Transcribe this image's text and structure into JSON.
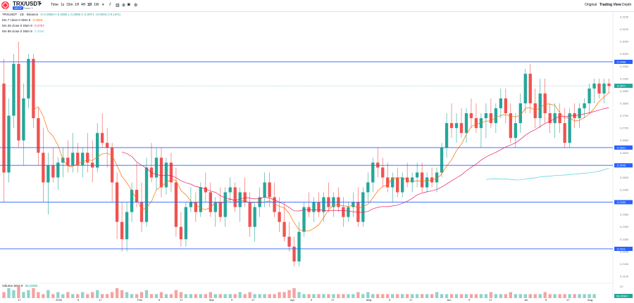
{
  "header": {
    "symbol": "TRX/USDT",
    "market_badge": "SPOT",
    "phase": "Phase 1",
    "timeframes": [
      {
        "label": "Time",
        "active": false
      },
      {
        "label": "1s",
        "active": false
      },
      {
        "label": "15m",
        "active": false
      },
      {
        "label": "1H",
        "active": false
      },
      {
        "label": "4H",
        "active": false
      },
      {
        "label": "1D",
        "active": true
      },
      {
        "label": "1W",
        "active": false
      }
    ],
    "more_caret": "▾",
    "view_tabs": [
      {
        "label": "Original",
        "active": false
      },
      {
        "label": "Trading View",
        "active": true
      },
      {
        "label": "Depth",
        "active": false
      }
    ]
  },
  "legend": {
    "ohlc_title": "TRXUSDT · 1D · Binance",
    "ohlc_values": "O 0.2866 H 0.2883 L 0.2859 C 0.2871 +0.0004 (+0.14%)",
    "ma7": {
      "label": "MA 7 close 0 SMA 9",
      "value": "0.2858",
      "color": "#ff6d00"
    },
    "ma25": {
      "label": "MA 25 close 0 SMA 9",
      "value": "0.2767",
      "color": "#e91e63"
    },
    "ma99": {
      "label": "MA 99 close 0 SMA 9",
      "value": "0.2656",
      "color": "#4dd0e1"
    },
    "volume": {
      "label": "Volume SMA 9",
      "value": "96.009M"
    }
  },
  "price_axis": {
    "ticks": [
      "0.3150",
      "0.3100",
      "0.3050",
      "0.3000",
      "0.2950",
      "0.2900",
      "0.2850",
      "0.2800",
      "0.2750",
      "0.2700",
      "0.2650",
      "0.2600",
      "0.2550",
      "0.2500",
      "0.2450",
      "0.2400",
      "0.2350",
      "0.2300",
      "0.2250",
      "0.2200",
      "0.2150",
      "0.2100"
    ],
    "hlines": [
      {
        "value": "0.2968",
        "color": "#2962ff"
      },
      {
        "value": "0.2621",
        "color": "#2962ff"
      },
      {
        "value": "0.2549",
        "color": "#2962ff"
      },
      {
        "value": "0.2400",
        "color": "#2962ff"
      },
      {
        "value": "0.2211",
        "color": "#2962ff"
      }
    ],
    "last_price": "0.2871",
    "vol_label": "96.009M",
    "vol_tick": "20"
  },
  "x_axis": [
    "17",
    "2025",
    "9",
    "17",
    "Feb",
    "9",
    "17",
    "Mar",
    "9",
    "17",
    "Apr",
    "9",
    "17",
    "May",
    "9",
    "17",
    "Jun",
    "9",
    "17",
    "Jul",
    "9",
    "17",
    "Aug"
  ],
  "chart_data": {
    "type": "candlestick",
    "title": "TRXUSDT · 1D · Binance",
    "ylim": [
      0.208,
      0.317
    ],
    "up_color": "#26a69a",
    "down_color": "#ef5350",
    "candles": [
      [
        0.288,
        0.298,
        0.24,
        0.252
      ],
      [
        0.252,
        0.282,
        0.248,
        0.275
      ],
      [
        0.275,
        0.3,
        0.27,
        0.296
      ],
      [
        0.296,
        0.305,
        0.262,
        0.265
      ],
      [
        0.265,
        0.288,
        0.255,
        0.282
      ],
      [
        0.282,
        0.3,
        0.278,
        0.298
      ],
      [
        0.298,
        0.3,
        0.27,
        0.274
      ],
      [
        0.274,
        0.278,
        0.255,
        0.26
      ],
      [
        0.26,
        0.27,
        0.24,
        0.248
      ],
      [
        0.248,
        0.26,
        0.235,
        0.255
      ],
      [
        0.255,
        0.262,
        0.248,
        0.25
      ],
      [
        0.25,
        0.258,
        0.245,
        0.256
      ],
      [
        0.256,
        0.262,
        0.25,
        0.258
      ],
      [
        0.258,
        0.265,
        0.252,
        0.255
      ],
      [
        0.255,
        0.268,
        0.252,
        0.26
      ],
      [
        0.26,
        0.264,
        0.252,
        0.255
      ],
      [
        0.255,
        0.262,
        0.25,
        0.26
      ],
      [
        0.26,
        0.268,
        0.252,
        0.256
      ],
      [
        0.256,
        0.265,
        0.248,
        0.254
      ],
      [
        0.254,
        0.272,
        0.252,
        0.268
      ],
      [
        0.268,
        0.276,
        0.262,
        0.264
      ],
      [
        0.264,
        0.27,
        0.254,
        0.262
      ],
      [
        0.262,
        0.264,
        0.24,
        0.248
      ],
      [
        0.248,
        0.252,
        0.225,
        0.232
      ],
      [
        0.232,
        0.24,
        0.22,
        0.225
      ],
      [
        0.225,
        0.24,
        0.22,
        0.236
      ],
      [
        0.236,
        0.248,
        0.232,
        0.245
      ],
      [
        0.245,
        0.256,
        0.238,
        0.24
      ],
      [
        0.24,
        0.248,
        0.228,
        0.232
      ],
      [
        0.232,
        0.258,
        0.23,
        0.254
      ],
      [
        0.254,
        0.264,
        0.248,
        0.25
      ],
      [
        0.25,
        0.262,
        0.245,
        0.258
      ],
      [
        0.258,
        0.262,
        0.242,
        0.246
      ],
      [
        0.246,
        0.258,
        0.243,
        0.256
      ],
      [
        0.256,
        0.26,
        0.244,
        0.248
      ],
      [
        0.248,
        0.254,
        0.226,
        0.23
      ],
      [
        0.23,
        0.236,
        0.222,
        0.225
      ],
      [
        0.225,
        0.24,
        0.222,
        0.238
      ],
      [
        0.238,
        0.246,
        0.236,
        0.24
      ],
      [
        0.24,
        0.244,
        0.232,
        0.236
      ],
      [
        0.236,
        0.248,
        0.234,
        0.246
      ],
      [
        0.246,
        0.252,
        0.24,
        0.244
      ],
      [
        0.244,
        0.248,
        0.234,
        0.236
      ],
      [
        0.236,
        0.242,
        0.23,
        0.24
      ],
      [
        0.24,
        0.246,
        0.232,
        0.234
      ],
      [
        0.234,
        0.246,
        0.23,
        0.244
      ],
      [
        0.244,
        0.25,
        0.24,
        0.246
      ],
      [
        0.246,
        0.248,
        0.236,
        0.238
      ],
      [
        0.238,
        0.246,
        0.232,
        0.244
      ],
      [
        0.244,
        0.25,
        0.238,
        0.24
      ],
      [
        0.24,
        0.244,
        0.226,
        0.23
      ],
      [
        0.23,
        0.24,
        0.224,
        0.238
      ],
      [
        0.238,
        0.246,
        0.234,
        0.242
      ],
      [
        0.242,
        0.252,
        0.238,
        0.248
      ],
      [
        0.248,
        0.252,
        0.238,
        0.242
      ],
      [
        0.242,
        0.248,
        0.234,
        0.236
      ],
      [
        0.236,
        0.242,
        0.228,
        0.232
      ],
      [
        0.232,
        0.24,
        0.224,
        0.226
      ],
      [
        0.226,
        0.232,
        0.22,
        0.222
      ],
      [
        0.222,
        0.226,
        0.214,
        0.216
      ],
      [
        0.216,
        0.232,
        0.214,
        0.228
      ],
      [
        0.228,
        0.24,
        0.226,
        0.238
      ],
      [
        0.238,
        0.244,
        0.234,
        0.236
      ],
      [
        0.236,
        0.242,
        0.232,
        0.24
      ],
      [
        0.24,
        0.244,
        0.234,
        0.236
      ],
      [
        0.236,
        0.244,
        0.232,
        0.242
      ],
      [
        0.242,
        0.248,
        0.236,
        0.238
      ],
      [
        0.238,
        0.244,
        0.234,
        0.242
      ],
      [
        0.242,
        0.246,
        0.236,
        0.238
      ],
      [
        0.238,
        0.242,
        0.23,
        0.234
      ],
      [
        0.234,
        0.24,
        0.232,
        0.238
      ],
      [
        0.238,
        0.244,
        0.234,
        0.24
      ],
      [
        0.24,
        0.246,
        0.23,
        0.232
      ],
      [
        0.232,
        0.246,
        0.23,
        0.244
      ],
      [
        0.244,
        0.252,
        0.24,
        0.248
      ],
      [
        0.248,
        0.258,
        0.244,
        0.256
      ],
      [
        0.256,
        0.262,
        0.25,
        0.254
      ],
      [
        0.254,
        0.258,
        0.246,
        0.25
      ],
      [
        0.25,
        0.256,
        0.244,
        0.246
      ],
      [
        0.246,
        0.252,
        0.24,
        0.25
      ],
      [
        0.25,
        0.254,
        0.242,
        0.244
      ],
      [
        0.244,
        0.252,
        0.242,
        0.25
      ],
      [
        0.25,
        0.256,
        0.246,
        0.248
      ],
      [
        0.248,
        0.252,
        0.244,
        0.25
      ],
      [
        0.25,
        0.256,
        0.246,
        0.252
      ],
      [
        0.252,
        0.256,
        0.244,
        0.246
      ],
      [
        0.246,
        0.252,
        0.244,
        0.25
      ],
      [
        0.25,
        0.254,
        0.246,
        0.248
      ],
      [
        0.248,
        0.254,
        0.244,
        0.252
      ],
      [
        0.252,
        0.264,
        0.25,
        0.262
      ],
      [
        0.262,
        0.276,
        0.258,
        0.272
      ],
      [
        0.272,
        0.28,
        0.266,
        0.27
      ],
      [
        0.27,
        0.276,
        0.264,
        0.272
      ],
      [
        0.272,
        0.278,
        0.266,
        0.268
      ],
      [
        0.268,
        0.278,
        0.264,
        0.276
      ],
      [
        0.276,
        0.282,
        0.27,
        0.274
      ],
      [
        0.274,
        0.28,
        0.268,
        0.27
      ],
      [
        0.27,
        0.276,
        0.262,
        0.274
      ],
      [
        0.274,
        0.28,
        0.266,
        0.276
      ],
      [
        0.276,
        0.282,
        0.27,
        0.272
      ],
      [
        0.272,
        0.28,
        0.268,
        0.278
      ],
      [
        0.278,
        0.286,
        0.274,
        0.282
      ],
      [
        0.282,
        0.286,
        0.272,
        0.276
      ],
      [
        0.276,
        0.28,
        0.264,
        0.266
      ],
      [
        0.266,
        0.276,
        0.262,
        0.272
      ],
      [
        0.272,
        0.284,
        0.268,
        0.28
      ],
      [
        0.28,
        0.294,
        0.276,
        0.292
      ],
      [
        0.292,
        0.296,
        0.276,
        0.28
      ],
      [
        0.28,
        0.286,
        0.27,
        0.274
      ],
      [
        0.274,
        0.29,
        0.27,
        0.284
      ],
      [
        0.284,
        0.29,
        0.272,
        0.276
      ],
      [
        0.276,
        0.28,
        0.268,
        0.272
      ],
      [
        0.272,
        0.28,
        0.266,
        0.276
      ],
      [
        0.276,
        0.28,
        0.268,
        0.272
      ],
      [
        0.272,
        0.278,
        0.262,
        0.264
      ],
      [
        0.264,
        0.278,
        0.262,
        0.276
      ],
      [
        0.276,
        0.28,
        0.27,
        0.274
      ],
      [
        0.274,
        0.28,
        0.27,
        0.278
      ],
      [
        0.278,
        0.282,
        0.274,
        0.28
      ],
      [
        0.28,
        0.288,
        0.276,
        0.286
      ],
      [
        0.286,
        0.29,
        0.28,
        0.288
      ],
      [
        0.288,
        0.29,
        0.282,
        0.284
      ],
      [
        0.284,
        0.29,
        0.28,
        0.288
      ],
      [
        0.288,
        0.29,
        0.284,
        0.287
      ]
    ],
    "volumes": [
      3,
      5,
      4,
      6,
      3,
      4,
      5,
      3,
      2,
      4,
      2,
      3,
      2,
      3,
      2,
      2,
      3,
      2,
      3,
      4,
      2,
      2,
      3,
      5,
      4,
      3,
      2,
      2,
      3,
      4,
      2,
      2,
      3,
      2,
      2,
      4,
      3,
      2,
      2,
      2,
      2,
      2,
      3,
      2,
      2,
      2,
      2,
      2,
      3,
      2,
      3,
      2,
      2,
      2,
      2,
      2,
      3,
      3,
      4,
      5,
      3,
      2,
      2,
      2,
      2,
      2,
      2,
      2,
      2,
      2,
      2,
      2,
      3,
      2,
      3,
      2,
      2,
      2,
      2,
      2,
      2,
      2,
      2,
      2,
      2,
      2,
      2,
      2,
      3,
      2,
      2,
      2,
      2,
      2,
      2,
      2,
      2,
      2,
      2,
      3,
      2,
      2,
      2,
      3,
      2,
      2,
      2,
      2,
      2,
      2,
      3,
      2,
      2,
      2,
      2,
      2,
      2,
      2,
      2,
      2,
      2
    ]
  }
}
